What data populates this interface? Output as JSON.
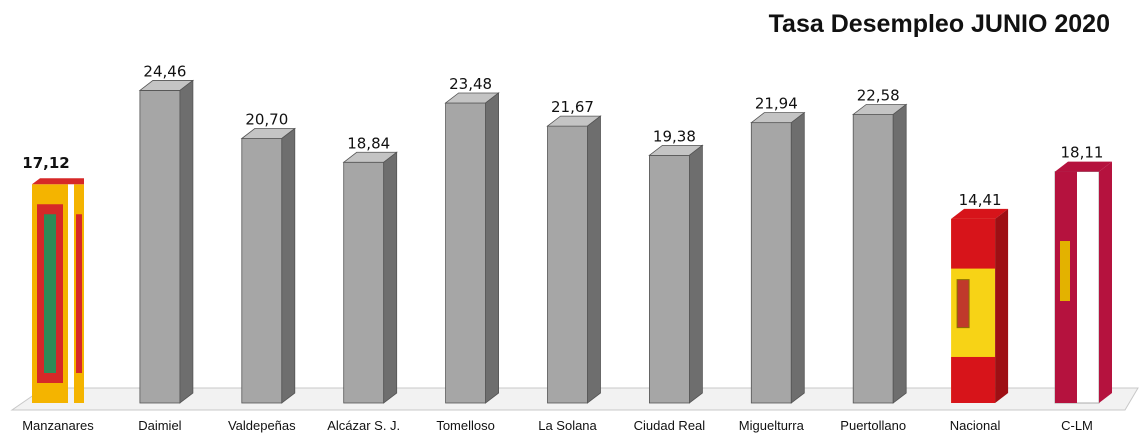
{
  "chart_data": {
    "type": "bar",
    "title": "Tasa Desempleo JUNIO 2020",
    "categories": [
      "Manzanares",
      "Daimiel",
      "Valdepeñas",
      "Alcázar S. J.",
      "Tomelloso",
      "La Solana",
      "Ciudad Real",
      "Miguelturra",
      "Puertollano",
      "Nacional",
      "C-LM"
    ],
    "values": [
      17.12,
      24.46,
      20.7,
      18.84,
      23.48,
      21.67,
      19.38,
      21.94,
      22.58,
      14.41,
      18.11
    ],
    "value_labels": [
      "17,12",
      "24,46",
      "20,70",
      "18,84",
      "23,48",
      "21,67",
      "19,38",
      "21,94",
      "22,58",
      "14,41",
      "18,11"
    ],
    "ylim": [
      0,
      27
    ],
    "grid": false,
    "legend": "none",
    "bar_styles": [
      "manzanares-flag",
      "gray",
      "gray",
      "gray",
      "gray",
      "gray",
      "gray",
      "gray",
      "gray",
      "spain-flag",
      "clm-flag"
    ]
  },
  "colors": {
    "bar_front": "#a6a6a6",
    "bar_top": "#c4c4c4",
    "bar_side": "#6e6e6e",
    "spain_red": "#d7141a",
    "spain_yellow": "#f7d316",
    "clm_crimson": "#b5123e",
    "floor": "#f2f2f2"
  }
}
